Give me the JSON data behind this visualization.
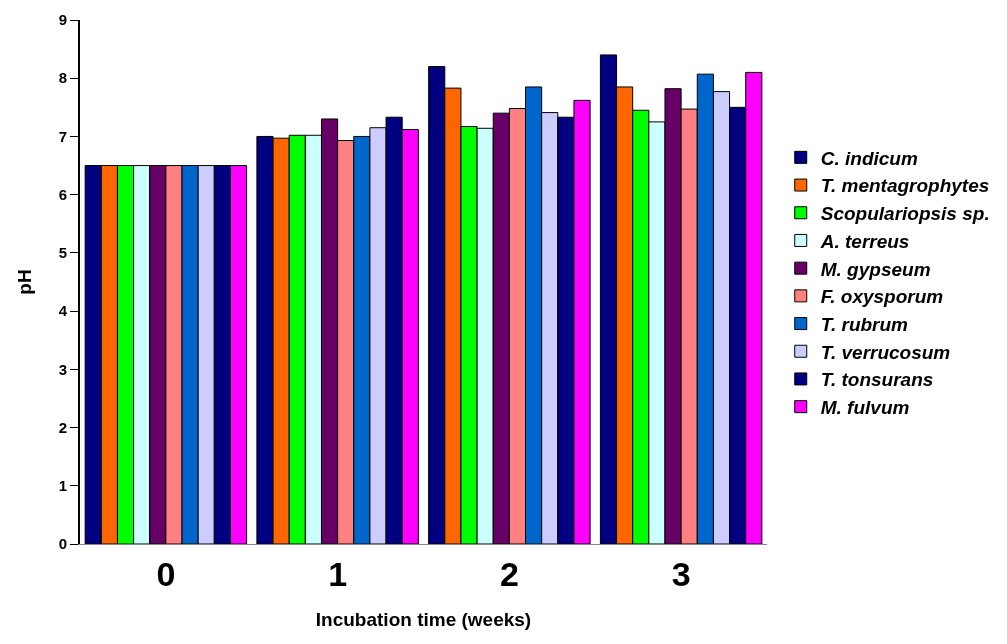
{
  "chart_data": {
    "type": "bar",
    "xlabel": "Incubation time (weeks)",
    "ylabel": "pH",
    "categories": [
      "0",
      "1",
      "2",
      "3"
    ],
    "ylim": [
      0,
      9
    ],
    "yticks": [
      0,
      1,
      2,
      3,
      4,
      5,
      6,
      7,
      8,
      9
    ],
    "grid": false,
    "legend": "right",
    "series": [
      {
        "name": "C. indicum",
        "color": "#000080",
        "values": [
          6.5,
          7.0,
          8.2,
          8.4
        ]
      },
      {
        "name": "T. mentagrophytes",
        "color": "#ff6600",
        "values": [
          6.5,
          6.97,
          7.83,
          7.85
        ]
      },
      {
        "name": "Scopulariopsis sp.",
        "color": "#00ff00",
        "values": [
          6.5,
          7.02,
          7.17,
          7.45
        ]
      },
      {
        "name": "A. terreus",
        "color": "#ccffff",
        "values": [
          6.5,
          7.02,
          7.14,
          7.25
        ]
      },
      {
        "name": "M. gypseum",
        "color": "#660066",
        "values": [
          6.5,
          7.3,
          7.4,
          7.82
        ]
      },
      {
        "name": "F. oxysporum",
        "color": "#ff8080",
        "values": [
          6.5,
          6.93,
          7.48,
          7.47
        ]
      },
      {
        "name": "T. rubrum",
        "color": "#0066cc",
        "values": [
          6.5,
          7.0,
          7.85,
          8.07
        ]
      },
      {
        "name": "T. verrucosum",
        "color": "#ccccff",
        "values": [
          6.5,
          7.15,
          7.41,
          7.77
        ]
      },
      {
        "name": "T. tonsurans",
        "color": "#000080",
        "values": [
          6.5,
          7.33,
          7.33,
          7.5
        ]
      },
      {
        "name": "M. fulvum",
        "color": "#ff00ff",
        "values": [
          6.5,
          7.12,
          7.62,
          8.1
        ]
      }
    ]
  }
}
